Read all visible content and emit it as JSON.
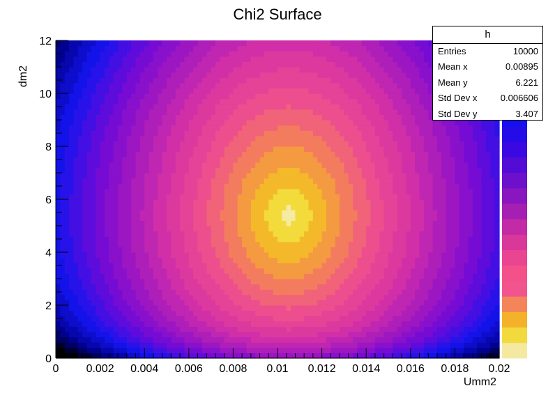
{
  "chart_data": {
    "type": "heatmap",
    "title": "Chi2 Surface",
    "xlabel": "Umm2",
    "ylabel": "dm2",
    "xlim": [
      0,
      0.02
    ],
    "ylim": [
      0,
      12
    ],
    "x_ticks": [
      "0",
      "0.002",
      "0.004",
      "0.006",
      "0.008",
      "0.01",
      "0.012",
      "0.014",
      "0.016",
      "0.018",
      "0.02"
    ],
    "y_ticks": [
      "0",
      "2",
      "4",
      "6",
      "8",
      "10",
      "12"
    ],
    "grid": false,
    "colormap": "ROOT kPlasma-like (black → blue → purple → pink → orange → yellow)",
    "minimum_location": {
      "x": 0.0105,
      "y": 5.4
    },
    "palette_colors": [
      "#f5e9a2",
      "#f2da3e",
      "#f3b22a",
      "#f4845a",
      "#f2558e",
      "#f4508a",
      "#ea4590",
      "#d9379a",
      "#c22aa6",
      "#a51fb3",
      "#8a16c0",
      "#6d10cc",
      "#520cd6",
      "#3a08e0",
      "#240be8",
      "#1410f0",
      "#0a1ae8"
    ],
    "stats": {
      "name": "h",
      "rows": [
        {
          "label": "Entries",
          "value": "10000"
        },
        {
          "label": "Mean x",
          "value": "0.00895"
        },
        {
          "label": "Mean y",
          "value": "6.221"
        },
        {
          "label": "Std Dev x",
          "value": "0.006606"
        },
        {
          "label": "Std Dev y",
          "value": "3.407"
        }
      ]
    }
  }
}
